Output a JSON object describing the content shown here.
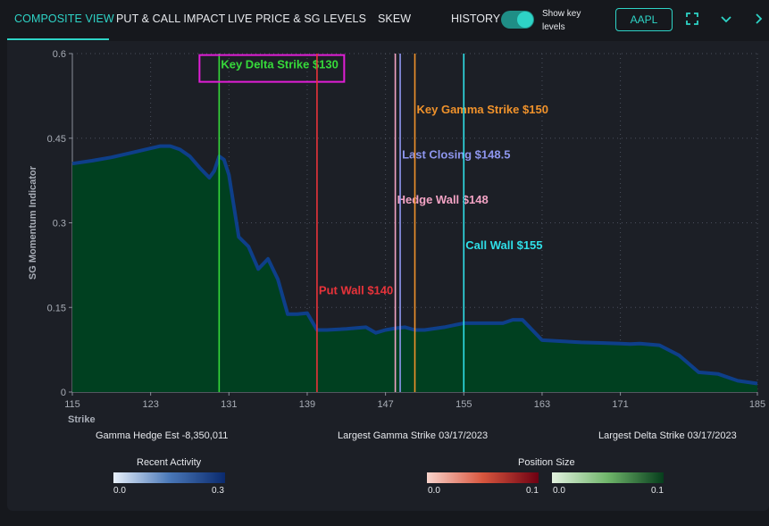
{
  "tabs": [
    {
      "label": "COMPOSITE VIEW",
      "active": true
    },
    {
      "label": "PUT & CALL IMPACT",
      "active": false
    },
    {
      "label": "LIVE PRICE & SG LEVELS",
      "active": false
    },
    {
      "label": "SKEW",
      "active": false
    }
  ],
  "controls": {
    "history_label": "HISTORY",
    "history_on": true,
    "show_levels_line1": "Show key",
    "show_levels_line2": "levels",
    "ticker": "AAPL",
    "icons": [
      "expand-icon",
      "chevron-down-icon",
      "chevron-right-icon"
    ]
  },
  "colors": {
    "accent": "#2ed3c6",
    "area_fill": "#004020",
    "area_line": "#0e3f8a"
  },
  "chart_data": {
    "type": "area",
    "ylabel": "SG Momentum Indicator",
    "xlabel": "Strike",
    "xlim": [
      115,
      185
    ],
    "ylim": [
      0,
      0.6
    ],
    "x_ticks": [
      115,
      123,
      131,
      139,
      147,
      155,
      163,
      171,
      185
    ],
    "y_ticks": [
      {
        "value": 0,
        "label": "0"
      },
      {
        "value": 0.15,
        "label": "0.15"
      },
      {
        "value": 0.3,
        "label": "0.3"
      },
      {
        "value": 0.45,
        "label": "0.45"
      },
      {
        "value": 0.6,
        "label": "0.6"
      }
    ],
    "grid": true,
    "series": [
      {
        "x": [
          115,
          117,
          119,
          121,
          123,
          124,
          125,
          126,
          127,
          128,
          129,
          129.5,
          130,
          130.5,
          131,
          132,
          133,
          134,
          135,
          136,
          137,
          138,
          139,
          140,
          141,
          143,
          145,
          146,
          147,
          148,
          149,
          150,
          151,
          153,
          155,
          157,
          159,
          160,
          161,
          163,
          165,
          167,
          169,
          171,
          172,
          173,
          175,
          177,
          179,
          181,
          183,
          185
        ],
        "y": [
          0.405,
          0.41,
          0.416,
          0.424,
          0.432,
          0.436,
          0.436,
          0.43,
          0.418,
          0.398,
          0.38,
          0.392,
          0.418,
          0.412,
          0.385,
          0.275,
          0.258,
          0.218,
          0.236,
          0.2,
          0.138,
          0.138,
          0.14,
          0.11,
          0.11,
          0.112,
          0.115,
          0.105,
          0.11,
          0.113,
          0.115,
          0.11,
          0.11,
          0.115,
          0.122,
          0.122,
          0.122,
          0.128,
          0.128,
          0.092,
          0.09,
          0.088,
          0.087,
          0.086,
          0.085,
          0.086,
          0.083,
          0.065,
          0.035,
          0.032,
          0.02,
          0.015
        ]
      }
    ],
    "key_levels": [
      {
        "label": "Key Delta Strike $130",
        "x": 130,
        "color": "#36d93a",
        "label_y": 0.58,
        "highlighted": true
      },
      {
        "label": "Put Wall $140",
        "x": 140,
        "color": "#e8333a",
        "label_y": 0.18
      },
      {
        "label": "Hedge Wall $148",
        "x": 148,
        "color": "#f2a3c4",
        "label_y": 0.34
      },
      {
        "label": "Last Closing $148.5",
        "x": 148.5,
        "color": "#8e96ee",
        "label_y": 0.42
      },
      {
        "label": "Key Gamma Strike $150",
        "x": 150,
        "color": "#f0922b",
        "label_y": 0.5
      },
      {
        "label": "Call Wall $155",
        "x": 155,
        "color": "#2fdfe8",
        "label_y": 0.26
      }
    ]
  },
  "stats": {
    "gamma_hedge": "Gamma Hedge Est -8,350,011",
    "largest_gamma": "Largest Gamma Strike 03/17/2023",
    "largest_delta": "Largest Delta Strike 03/17/2023"
  },
  "legends": {
    "recent_activity": {
      "title": "Recent Activity",
      "min": "0.0",
      "max": "0.3"
    },
    "position_size": {
      "title": "Position Size",
      "neg_min": "0.0",
      "neg_max": "0.1",
      "pos_min": "0.0",
      "pos_max": "0.1"
    }
  }
}
